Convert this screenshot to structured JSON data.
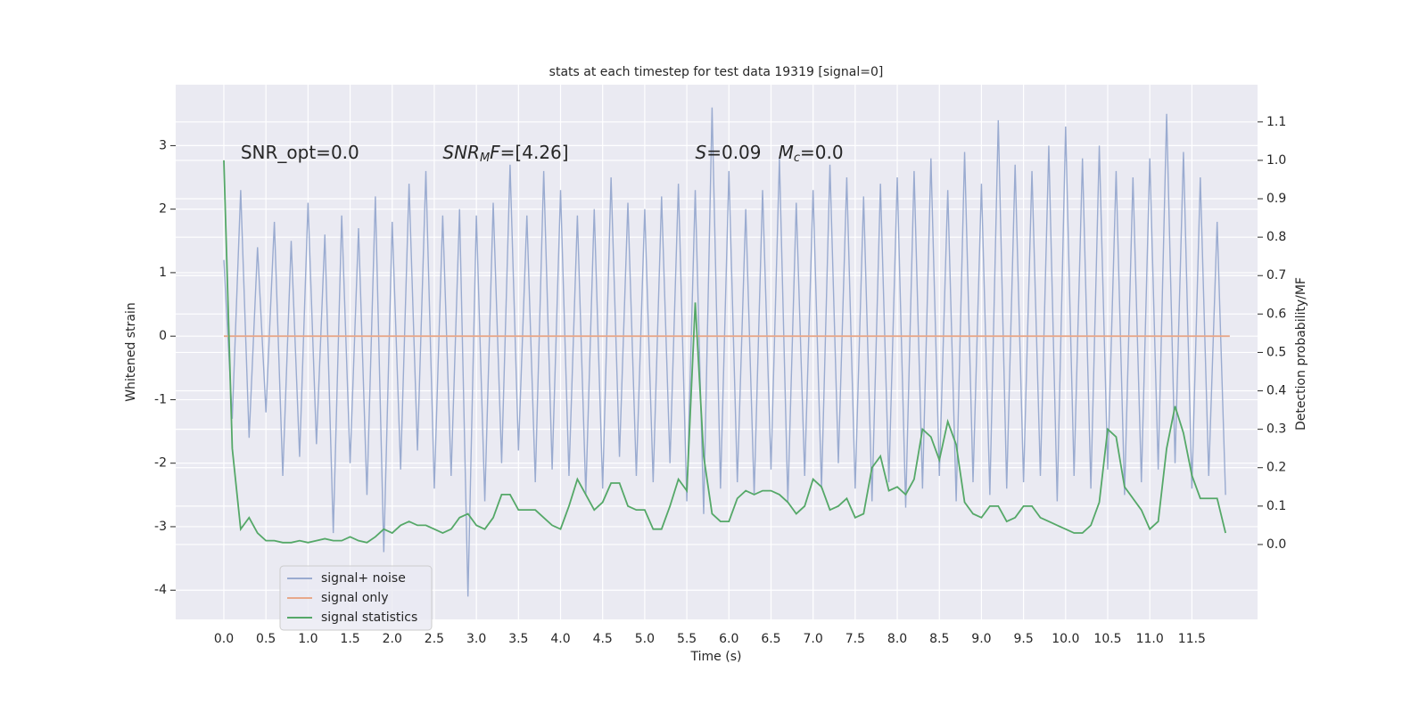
{
  "chart_data": {
    "type": "line",
    "title": "stats at each timestep for test data 19319 [signal=0]",
    "xlabel": "Time (s)",
    "ylabel": "Whitened strain",
    "y2label": "Detection probability/MF",
    "xlim": [
      -0.572,
      12.28
    ],
    "ylim": [
      -4.46,
      3.96
    ],
    "y2lim": [
      -0.195,
      1.197
    ],
    "xticks": [
      {
        "value": 0,
        "label": "0.0"
      },
      {
        "value": 0.5,
        "label": "0.5"
      },
      {
        "value": 1,
        "label": "1.0"
      },
      {
        "value": 1.5,
        "label": "1.5"
      },
      {
        "value": 2,
        "label": "2.0"
      },
      {
        "value": 2.5,
        "label": "2.5"
      },
      {
        "value": 3,
        "label": "3.0"
      },
      {
        "value": 3.5,
        "label": "3.5"
      },
      {
        "value": 4,
        "label": "4.0"
      },
      {
        "value": 4.5,
        "label": "4.5"
      },
      {
        "value": 5,
        "label": "5.0"
      },
      {
        "value": 5.5,
        "label": "5.5"
      },
      {
        "value": 6,
        "label": "6.0"
      },
      {
        "value": 6.5,
        "label": "6.5"
      },
      {
        "value": 7,
        "label": "7.0"
      },
      {
        "value": 7.5,
        "label": "7.5"
      },
      {
        "value": 8,
        "label": "8.0"
      },
      {
        "value": 8.5,
        "label": "8.5"
      },
      {
        "value": 9,
        "label": "9.0"
      },
      {
        "value": 9.5,
        "label": "9.5"
      },
      {
        "value": 10,
        "label": "10.0"
      },
      {
        "value": 10.5,
        "label": "10.5"
      },
      {
        "value": 11,
        "label": "11.0"
      },
      {
        "value": 11.5,
        "label": "11.5"
      }
    ],
    "yticks": [
      -4,
      -3,
      -2,
      -1,
      0,
      1,
      2,
      3
    ],
    "y2ticks": [
      {
        "value": 0,
        "label": "0.0"
      },
      {
        "value": 0.1,
        "label": "0.1"
      },
      {
        "value": 0.2,
        "label": "0.2"
      },
      {
        "value": 0.3,
        "label": "0.3"
      },
      {
        "value": 0.4,
        "label": "0.4"
      },
      {
        "value": 0.5,
        "label": "0.5"
      },
      {
        "value": 0.6,
        "label": "0.6"
      },
      {
        "value": 0.7,
        "label": "0.7"
      },
      {
        "value": 0.8,
        "label": "0.8"
      },
      {
        "value": 0.9,
        "label": "0.9"
      },
      {
        "value": 1,
        "label": "1.0"
      },
      {
        "value": 1.1,
        "label": "1.1"
      }
    ],
    "grid": true,
    "legend": "lower left",
    "annotations": [
      {
        "x": 0.2,
        "y": 1.0,
        "parts": [
          {
            "text": "SNR_opt=0.0"
          }
        ]
      },
      {
        "x": 2.6,
        "y": 1.0,
        "parts": [
          {
            "text": "SNR",
            "italic": true
          },
          {
            "text": "M",
            "italic": true,
            "sub": true
          },
          {
            "text": "F",
            "italic": true
          },
          {
            "text": "=[4.26]"
          }
        ]
      },
      {
        "x": 5.6,
        "y": 1.0,
        "parts": [
          {
            "text": "S",
            "italic": true
          },
          {
            "text": "=0.09   "
          },
          {
            "text": "M",
            "italic": true
          },
          {
            "text": "c",
            "italic": true,
            "sub": true
          },
          {
            "text": "=0.0"
          }
        ]
      }
    ],
    "x": [
      0,
      0.1,
      0.2,
      0.3,
      0.4,
      0.5,
      0.6,
      0.7,
      0.8,
      0.9,
      1,
      1.1,
      1.2,
      1.3,
      1.4,
      1.5,
      1.6,
      1.7,
      1.8,
      1.9,
      2,
      2.1,
      2.2,
      2.3,
      2.4,
      2.5,
      2.6,
      2.7,
      2.8,
      2.9,
      3,
      3.1,
      3.2,
      3.3,
      3.4,
      3.5,
      3.6,
      3.7,
      3.8,
      3.9,
      4,
      4.1,
      4.2,
      4.3,
      4.4,
      4.5,
      4.6,
      4.7,
      4.8,
      4.9,
      5,
      5.1,
      5.2,
      5.3,
      5.4,
      5.5,
      5.6,
      5.7,
      5.8,
      5.9,
      6,
      6.1,
      6.2,
      6.3,
      6.4,
      6.5,
      6.6,
      6.7,
      6.8,
      6.9,
      7,
      7.1,
      7.2,
      7.3,
      7.4,
      7.5,
      7.6,
      7.7,
      7.8,
      7.9,
      8,
      8.1,
      8.2,
      8.3,
      8.4,
      8.5,
      8.6,
      8.7,
      8.8,
      8.9,
      9,
      9.1,
      9.2,
      9.3,
      9.4,
      9.5,
      9.6,
      9.7,
      9.8,
      9.9,
      10,
      10.1,
      10.2,
      10.3,
      10.4,
      10.5,
      10.6,
      10.7,
      10.8,
      10.9,
      11,
      11.1,
      11.2,
      11.3,
      11.4,
      11.5,
      11.6,
      11.7,
      11.8,
      11.9
    ],
    "series": [
      {
        "name": "signal+ noise",
        "color": "#9aabd0",
        "values": [
          1.2,
          -1.3,
          2.3,
          -1.6,
          1.4,
          -1.2,
          1.8,
          -2.2,
          1.5,
          -1.9,
          2.1,
          -1.7,
          1.6,
          -3.1,
          1.9,
          -2.0,
          1.7,
          -2.5,
          2.2,
          -3.4,
          1.8,
          -2.1,
          2.4,
          -1.8,
          2.6,
          -2.4,
          1.9,
          -2.2,
          2.0,
          -4.1,
          1.9,
          -2.6,
          2.1,
          -2.0,
          2.7,
          -1.8,
          1.9,
          -2.3,
          2.6,
          -2.1,
          2.3,
          -2.2,
          1.9,
          -2.5,
          2.0,
          -2.4,
          2.5,
          -1.9,
          2.1,
          -2.2,
          2.0,
          -2.3,
          2.2,
          -2.0,
          2.4,
          -2.6,
          2.3,
          -2.8,
          3.6,
          -2.4,
          2.6,
          -2.3,
          2.0,
          -2.5,
          2.3,
          -2.1,
          2.8,
          -2.6,
          2.1,
          -2.2,
          2.3,
          -2.4,
          2.7,
          -2.0,
          2.5,
          -2.4,
          2.2,
          -2.6,
          2.4,
          -2.3,
          2.5,
          -2.7,
          2.6,
          -2.4,
          2.8,
          -2.2,
          2.3,
          -2.6,
          2.9,
          -2.3,
          2.4,
          -2.5,
          3.4,
          -2.4,
          2.7,
          -2.3,
          2.6,
          -2.2,
          3.0,
          -2.6,
          3.3,
          -2.2,
          2.8,
          -2.4,
          3.0,
          -2.1,
          2.6,
          -2.5,
          2.5,
          -2.3,
          2.8,
          -2.1,
          3.5,
          -2.0,
          2.9,
          -2.4,
          2.5,
          -2.2,
          1.8,
          -2.5
        ]
      },
      {
        "name": "signal only",
        "color": "#e8a88a",
        "x": [
          0,
          11.95
        ],
        "values": [
          0,
          0
        ]
      },
      {
        "name": "signal statistics",
        "color": "#55a868",
        "axis": "y2",
        "values": [
          1.0,
          0.25,
          0.04,
          0.07,
          0.03,
          0.01,
          0.01,
          0.005,
          0.005,
          0.01,
          0.005,
          0.01,
          0.015,
          0.01,
          0.01,
          0.02,
          0.01,
          0.005,
          0.02,
          0.04,
          0.03,
          0.05,
          0.06,
          0.05,
          0.05,
          0.04,
          0.03,
          0.04,
          0.07,
          0.08,
          0.05,
          0.04,
          0.07,
          0.13,
          0.13,
          0.09,
          0.09,
          0.09,
          0.07,
          0.05,
          0.04,
          0.1,
          0.17,
          0.13,
          0.09,
          0.11,
          0.16,
          0.16,
          0.1,
          0.09,
          0.09,
          0.04,
          0.04,
          0.1,
          0.17,
          0.14,
          0.63,
          0.23,
          0.08,
          0.06,
          0.06,
          0.12,
          0.14,
          0.13,
          0.14,
          0.14,
          0.13,
          0.11,
          0.08,
          0.1,
          0.17,
          0.15,
          0.09,
          0.1,
          0.12,
          0.07,
          0.08,
          0.2,
          0.23,
          0.14,
          0.15,
          0.13,
          0.17,
          0.3,
          0.28,
          0.22,
          0.32,
          0.26,
          0.11,
          0.08,
          0.07,
          0.1,
          0.1,
          0.06,
          0.07,
          0.1,
          0.1,
          0.07,
          0.06,
          0.05,
          0.04,
          0.03,
          0.03,
          0.05,
          0.11,
          0.3,
          0.28,
          0.15,
          0.12,
          0.09,
          0.04,
          0.06,
          0.25,
          0.36,
          0.29,
          0.18,
          0.12,
          0.12,
          0.12,
          0.03
        ]
      }
    ]
  }
}
